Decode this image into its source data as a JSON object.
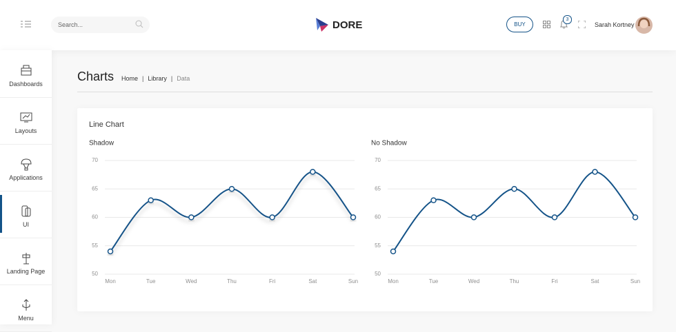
{
  "header": {
    "search_placeholder": "Search...",
    "logo": "DORE",
    "buy": "BUY",
    "notifications": "3",
    "user": "Sarah Kortney"
  },
  "sidebar": {
    "items": [
      "Dashboards",
      "Layouts",
      "Applications",
      "UI",
      "Landing Page",
      "Menu"
    ],
    "active": 3
  },
  "page": {
    "title": "Charts",
    "breadcrumb": [
      "Home",
      "Library",
      "Data"
    ]
  },
  "card": {
    "title": "Line Chart"
  },
  "chart_data": [
    {
      "type": "line",
      "title": "Shadow",
      "categories": [
        "Mon",
        "Tue",
        "Wed",
        "Thu",
        "Fri",
        "Sat",
        "Sun"
      ],
      "series": [
        {
          "color": "#145388",
          "values": [
            54,
            63,
            60,
            65,
            60,
            68,
            60
          ]
        }
      ],
      "ylim": [
        50,
        70
      ],
      "yticks": [
        50,
        55,
        60,
        65,
        70
      ],
      "grid": true,
      "shadow": true
    },
    {
      "type": "line",
      "title": "No Shadow",
      "categories": [
        "Mon",
        "Tue",
        "Wed",
        "Thu",
        "Fri",
        "Sat",
        "Sun"
      ],
      "series": [
        {
          "color": "#145388",
          "values": [
            54,
            63,
            60,
            65,
            60,
            68,
            60
          ]
        }
      ],
      "ylim": [
        50,
        70
      ],
      "yticks": [
        50,
        55,
        60,
        65,
        70
      ],
      "grid": true,
      "shadow": false
    }
  ]
}
